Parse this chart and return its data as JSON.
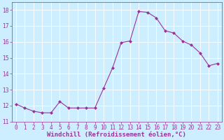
{
  "x": [
    0,
    1,
    2,
    3,
    4,
    5,
    6,
    7,
    8,
    9,
    10,
    11,
    12,
    13,
    14,
    15,
    16,
    17,
    18,
    19,
    20,
    21,
    22,
    23
  ],
  "y": [
    12.1,
    11.85,
    11.65,
    11.55,
    11.55,
    12.25,
    11.85,
    11.85,
    11.85,
    11.85,
    13.1,
    14.35,
    15.95,
    16.05,
    17.9,
    17.85,
    17.5,
    16.7,
    16.55,
    16.05,
    15.8,
    15.3,
    14.5,
    14.65
  ],
  "line_color": "#993399",
  "marker": "D",
  "markersize": 2.0,
  "linewidth": 0.8,
  "bg_color": "#cceeff",
  "grid_color": "#ffffff",
  "xlabel": "Windchill (Refroidissement éolien,°C)",
  "xlabel_fontsize": 6.5,
  "ylim": [
    11,
    18.5
  ],
  "yticks": [
    11,
    12,
    13,
    14,
    15,
    16,
    17,
    18
  ],
  "xticks": [
    0,
    1,
    2,
    3,
    4,
    5,
    6,
    7,
    8,
    9,
    10,
    11,
    12,
    13,
    14,
    15,
    16,
    17,
    18,
    19,
    20,
    21,
    22,
    23
  ],
  "tick_fontsize": 5.5,
  "tick_color": "#993399",
  "spine_color": "#993399"
}
